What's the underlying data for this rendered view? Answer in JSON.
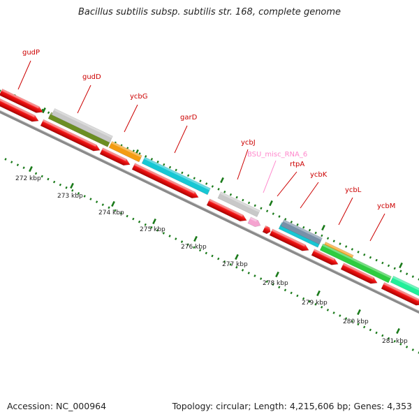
{
  "header": {
    "title": "Bacillus subtilis subsp. subtilis str. 168, complete genome"
  },
  "footer": {
    "accession": "Accession: NC_000964",
    "summary": "Topology: circular; Length: 4,215,606 bp; Genes: 4,353"
  },
  "scale": {
    "unit": "kbp",
    "ticks": [
      {
        "label": "272 kbp"
      },
      {
        "label": "273 kbp"
      },
      {
        "label": "274 kbp"
      },
      {
        "label": "275 kbp"
      },
      {
        "label": "276 kbp"
      },
      {
        "label": "277 kbp"
      },
      {
        "label": "278 kbp"
      },
      {
        "label": "279 kbp"
      },
      {
        "label": "280 kbp"
      },
      {
        "label": "281 kbp"
      }
    ]
  },
  "genes": [
    {
      "name": "gudP",
      "color": "#cc0000"
    },
    {
      "name": "gudD",
      "color": "#cc0000"
    },
    {
      "name": "ycbG",
      "color": "#cc0000"
    },
    {
      "name": "garD",
      "color": "#cc0000"
    },
    {
      "name": "ycbJ",
      "color": "#cc0000"
    },
    {
      "name": "BSU_misc_RNA_6",
      "color": "#ff88cc"
    },
    {
      "name": "rtpA",
      "color": "#cc0000"
    },
    {
      "name": "ycbK",
      "color": "#cc0000"
    },
    {
      "name": "ycbL",
      "color": "#cc0000"
    },
    {
      "name": "ycbM",
      "color": "#cc0000"
    }
  ],
  "colors": {
    "cds": "#ee1111",
    "backbone": "#8a8a8a",
    "tick": "#1a7a1a",
    "grey": "#c8c8c8",
    "olive": "#6b8e23",
    "orange": "#f39c12",
    "cyan": "#17c7d4",
    "pink": "#f5a3d0",
    "slate": "#7890a8",
    "green": "#2ecc40",
    "mint": "#22ee99"
  }
}
